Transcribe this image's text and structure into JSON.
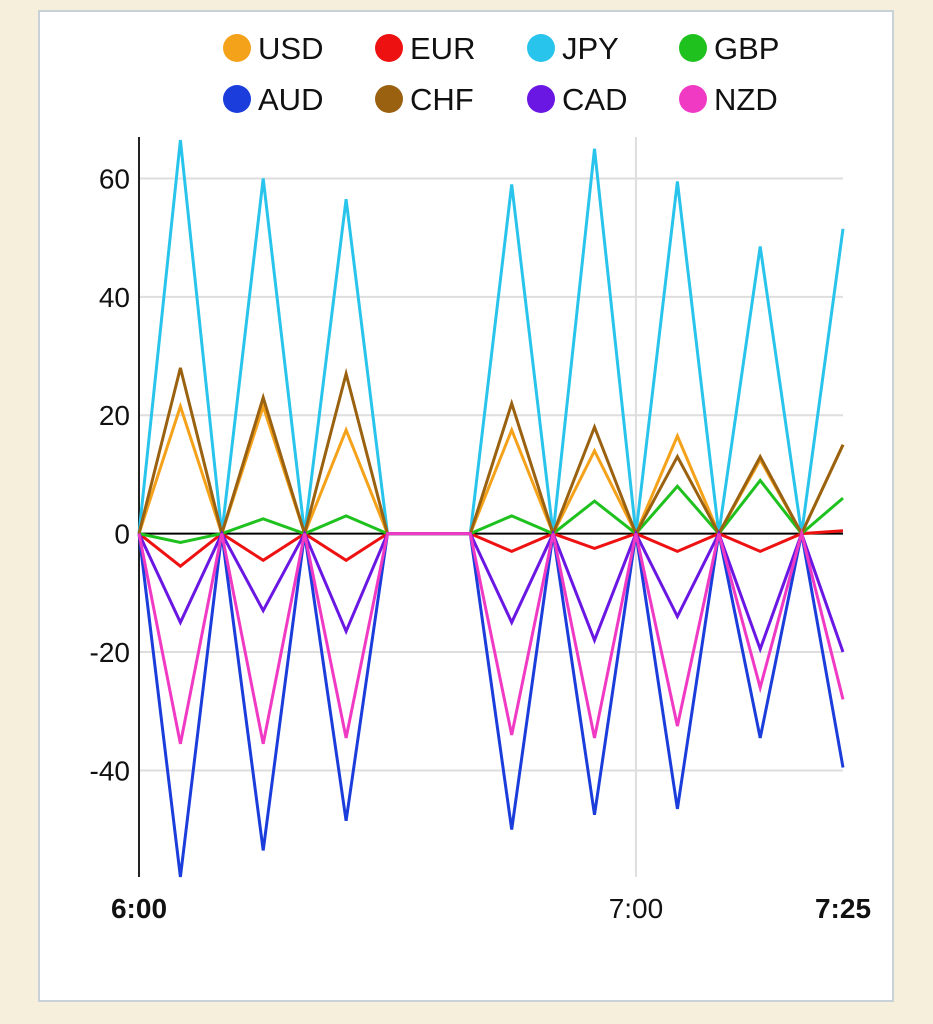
{
  "chart_data": {
    "type": "line",
    "title": "",
    "xlabel": "",
    "ylabel": "",
    "ylim": [
      -58,
      67
    ],
    "yticks": [
      -40,
      -20,
      0,
      20,
      40,
      60
    ],
    "y_tick_labels": [
      "-40",
      "-20",
      "0",
      "20",
      "40",
      "60"
    ],
    "x_tick_labels": [
      {
        "label": "6:00",
        "index": 0,
        "bold": true
      },
      {
        "label": "7:00",
        "index": 12,
        "bold": false
      },
      {
        "label": "7:25",
        "index": 17,
        "bold": true
      }
    ],
    "x": [
      "6:00",
      "6:05",
      "6:10",
      "6:15",
      "6:20",
      "6:25",
      "6:30",
      "6:35",
      "6:40",
      "6:45",
      "6:50",
      "6:55",
      "7:00",
      "7:05",
      "7:10",
      "7:15",
      "7:20",
      "7:25"
    ],
    "legend_position": "top",
    "series": [
      {
        "name": "USD",
        "color": "#f5a21b",
        "values": [
          0,
          21.5,
          0,
          21.5,
          0,
          17.5,
          0,
          0,
          0,
          17.5,
          0,
          14,
          0,
          16.5,
          0,
          12.5,
          0,
          15
        ]
      },
      {
        "name": "EUR",
        "color": "#ee1111",
        "values": [
          0,
          -5.5,
          0,
          -4.5,
          0,
          -4.5,
          0,
          0,
          0,
          -3,
          0,
          -2.5,
          0,
          -3,
          0,
          -3,
          0,
          0.5
        ]
      },
      {
        "name": "JPY",
        "color": "#29c4ec",
        "values": [
          0,
          66.5,
          0,
          60,
          0,
          56.5,
          0,
          0,
          0,
          59,
          0,
          65,
          0,
          59.5,
          0,
          48.5,
          0,
          51.5
        ]
      },
      {
        "name": "GBP",
        "color": "#1fc11f",
        "values": [
          0,
          -1.5,
          0,
          2.5,
          0,
          3,
          0,
          0,
          0,
          3,
          0,
          5.5,
          0,
          8,
          0,
          9,
          0,
          6
        ]
      },
      {
        "name": "AUD",
        "color": "#1a3ddb",
        "values": [
          0,
          -58,
          0,
          -53.5,
          0,
          -48.5,
          0,
          0,
          0,
          -50,
          0,
          -47.5,
          0,
          -46.5,
          0,
          -34.5,
          0,
          -39.5
        ]
      },
      {
        "name": "CHF",
        "color": "#9a6210",
        "values": [
          0,
          28,
          0,
          23,
          0,
          27,
          0,
          0,
          0,
          22,
          0,
          18,
          0,
          13,
          0,
          13,
          0,
          15
        ]
      },
      {
        "name": "CAD",
        "color": "#6a17e3",
        "values": [
          0,
          -15,
          0,
          -13,
          0,
          -16.5,
          0,
          0,
          0,
          -15,
          0,
          -18,
          0,
          -14,
          0,
          -19.5,
          0,
          -20
        ]
      },
      {
        "name": "NZD",
        "color": "#f03ac4",
        "values": [
          0,
          -35.5,
          0,
          -35.5,
          0,
          -34.5,
          0,
          0,
          0,
          -34,
          0,
          -34.5,
          0,
          -32.5,
          0,
          -26,
          0,
          -28
        ]
      }
    ]
  }
}
